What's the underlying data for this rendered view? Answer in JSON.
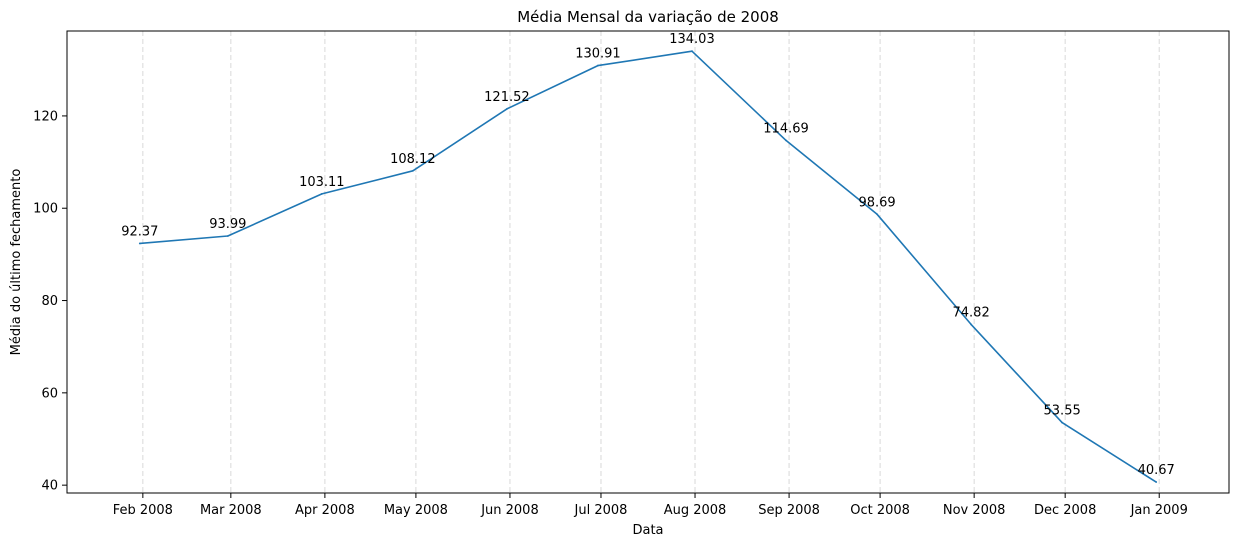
{
  "chart_data": {
    "type": "line",
    "title": "Média Mensal da variação de 2008",
    "xlabel": "Data",
    "ylabel": "Média do último fechamento",
    "x": [
      "2008-01-31",
      "2008-02-29",
      "2008-03-31",
      "2008-04-30",
      "2008-05-31",
      "2008-06-30",
      "2008-07-31",
      "2008-08-31",
      "2008-09-30",
      "2008-10-31",
      "2008-11-30",
      "2008-12-31"
    ],
    "x_tick_labels": [
      "Feb 2008",
      "Mar 2008",
      "Apr 2008",
      "May 2008",
      "Jun 2008",
      "Jul 2008",
      "Aug 2008",
      "Sep 2008",
      "Oct 2008",
      "Nov 2008",
      "Dec 2008",
      "Jan 2009"
    ],
    "x_tick_dates": [
      "2008-02-01",
      "2008-03-01",
      "2008-04-01",
      "2008-05-01",
      "2008-06-01",
      "2008-07-01",
      "2008-08-01",
      "2008-09-01",
      "2008-10-01",
      "2008-11-01",
      "2008-12-01",
      "2009-01-01"
    ],
    "series": [
      {
        "values": [
          92.37,
          93.99,
          103.11,
          108.12,
          121.52,
          130.91,
          134.03,
          114.69,
          98.69,
          74.82,
          53.55,
          40.67
        ],
        "data_labels": [
          "92.37",
          "93.99",
          "103.11",
          "108.12",
          "121.52",
          "130.91",
          "134.03",
          "114.69",
          "98.69",
          "74.82",
          "53.55",
          "40.67"
        ],
        "color": "#1f77b4"
      }
    ],
    "y_ticks": [
      40,
      60,
      80,
      100,
      120
    ],
    "y_tick_labels": [
      "40",
      "60",
      "80",
      "100",
      "120"
    ],
    "ylim": [
      38.3,
      138.4
    ],
    "xlim": [
      "2008-01-07",
      "2009-01-24"
    ],
    "grid": "x-axis only, dashed, light gray",
    "legend": "none"
  }
}
